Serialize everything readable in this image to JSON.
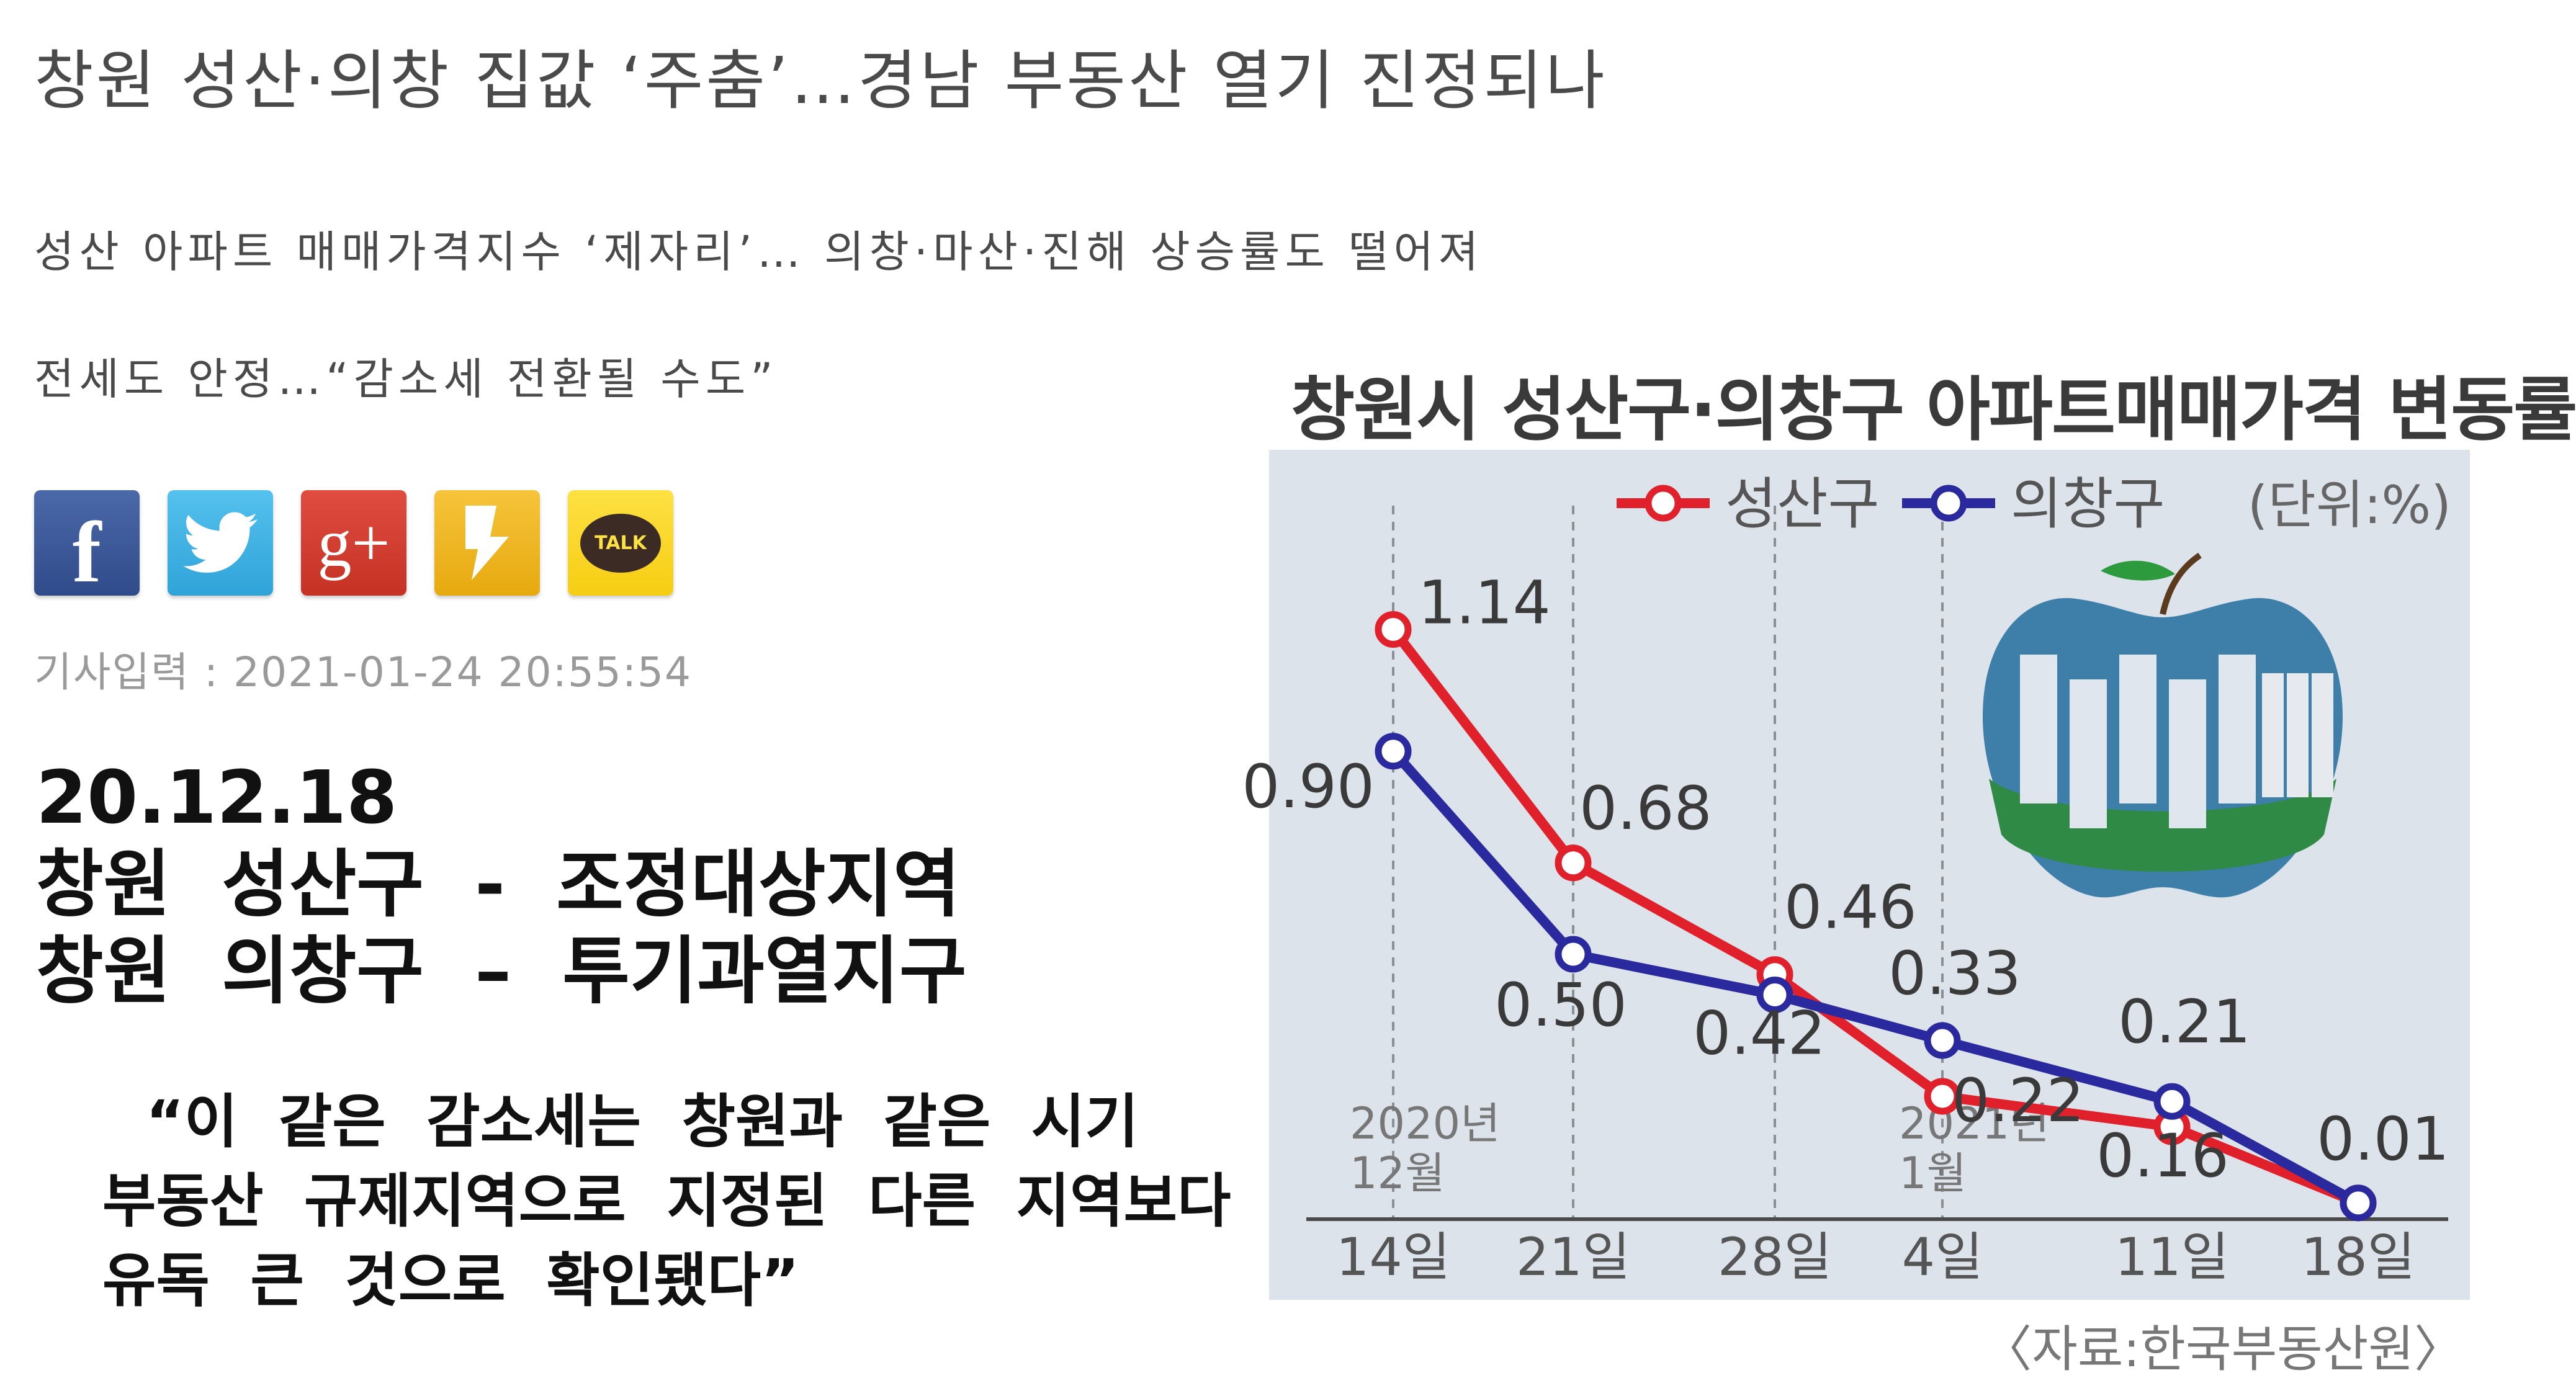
{
  "article": {
    "headline": "창원 성산·의창 집값 ‘주춤’…경남 부동산 열기 진정되나",
    "subhead_1": "성산 아파트 매매가격지수 ‘제자리’… 의창·마산·진해 상승률도 떨어져",
    "subhead_2": "전세도 안정…“감소세 전환될 수도”",
    "date_label": "기사입력 : 2021-01-24 20:55:54"
  },
  "share": {
    "facebook_glyph": "f",
    "googleplus_glyph": "g+",
    "kakaotalk_glyph": "TALK"
  },
  "note": {
    "line1": "20.12.18",
    "line2": "창원  성산구  -  조정대상지역",
    "line3": "창원  의창구  –  투기과열지구"
  },
  "quote": {
    "line1": "“이  같은  감소세는  창원과  같은  시기",
    "line2": "부동산  규제지역으로  지정된  다른  지역보다",
    "line3": "유독  큰  것으로  확인됐다”"
  },
  "chart_data": {
    "type": "line",
    "title": "창원시 성산구·의창구 아파트매매가격 변동률",
    "unit_label": "(단위:%)",
    "source": "〈자료:한국부동산원〉",
    "categories": [
      "14일",
      "21일",
      "28일",
      "4일",
      "11일",
      "18일"
    ],
    "month_labels": [
      {
        "index": 0,
        "year": "2020년",
        "month": "12월"
      },
      {
        "index": 3,
        "year": "2021년",
        "month": "1월"
      }
    ],
    "series": [
      {
        "name": "성산구",
        "color": "#e0202a",
        "values": [
          1.14,
          0.68,
          0.46,
          0.22,
          0.16,
          0.01
        ],
        "labels": [
          "1.14",
          "0.68",
          "0.46",
          "0.22",
          "0.16",
          "0.01"
        ]
      },
      {
        "name": "의창구",
        "color": "#2a2a9e",
        "values": [
          0.9,
          0.5,
          0.42,
          0.33,
          0.21,
          0.01
        ],
        "labels": [
          "0.90",
          "0.50",
          "0.42",
          "0.33",
          "0.21",
          ""
        ]
      }
    ],
    "ylim": [
      0,
      1.2
    ],
    "legend_position": "top"
  }
}
